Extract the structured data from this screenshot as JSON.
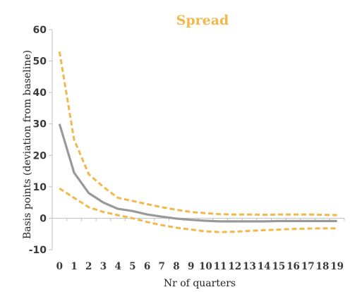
{
  "chart_data": {
    "type": "line",
    "title": "Spread",
    "xlabel": "Nr of quarters",
    "ylabel": "Basis points (deviation from baseline)",
    "x": [
      0,
      1,
      2,
      3,
      4,
      5,
      6,
      7,
      8,
      9,
      10,
      11,
      12,
      13,
      14,
      15,
      16,
      17,
      18,
      19
    ],
    "x_tick_labels": [
      "0",
      "1",
      "2",
      "3",
      "4",
      "5",
      "6",
      "7",
      "8",
      "9",
      "10",
      "11",
      "12",
      "13",
      "14",
      "15",
      "16",
      "17",
      "18",
      "19"
    ],
    "ylim": [
      -10,
      60
    ],
    "y_ticks": [
      -10,
      0,
      10,
      20,
      30,
      40,
      50,
      60
    ],
    "y_tick_labels": [
      "-10",
      "0",
      "10",
      "20",
      "30",
      "40",
      "50",
      "60"
    ],
    "grid": false,
    "series": [
      {
        "role": "upper",
        "style": "dashed",
        "color": "#f2b84b",
        "values": [
          53,
          25,
          14,
          10,
          6.5,
          5.5,
          4.5,
          3.5,
          2.7,
          2,
          1.6,
          1.3,
          1.2,
          1.2,
          1.1,
          1.2,
          1.2,
          1.2,
          1.1,
          1.0
        ]
      },
      {
        "role": "median",
        "style": "solid",
        "color": "#999999",
        "values": [
          30,
          14.5,
          8,
          5,
          3,
          2.3,
          1.2,
          0.5,
          -0.1,
          -0.5,
          -0.8,
          -1.0,
          -1.0,
          -1.0,
          -1.0,
          -0.9,
          -0.9,
          -0.9,
          -0.9,
          -0.9
        ]
      },
      {
        "role": "lower",
        "style": "dashed",
        "color": "#f2b84b",
        "values": [
          9.5,
          6.5,
          3.5,
          2,
          1,
          0,
          -1.2,
          -2.2,
          -3,
          -3.6,
          -4.2,
          -4.4,
          -4.3,
          -4,
          -3.8,
          -3.6,
          -3.4,
          -3.3,
          -3.2,
          -3.2
        ]
      }
    ]
  },
  "colors": {
    "title": "#f2b84b",
    "axis": "#bfbfbf",
    "text": "#3a3a3a"
  }
}
